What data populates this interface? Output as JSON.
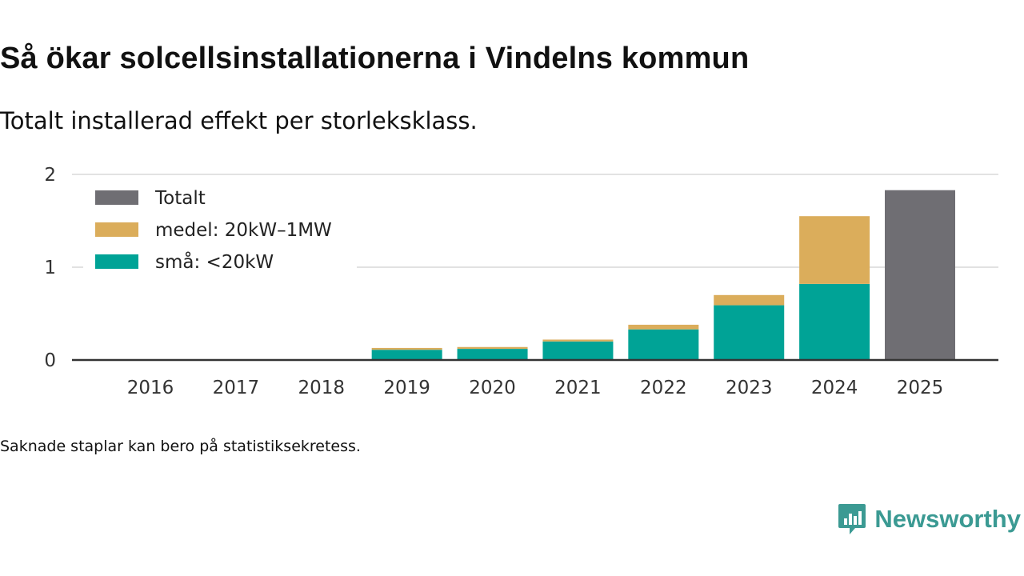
{
  "title": "Så ökar solcellsinstallationerna i Vindelns kommun",
  "subtitle": "Totalt installerad effekt per storleksklass.",
  "footnote": "Saknade staplar kan bero på statistiksekretess.",
  "brand": {
    "name": "Newsworthy",
    "icon": "newsworthy-logo-icon",
    "color": "#3b9a93"
  },
  "colors": {
    "sma": "#00a396",
    "medel": "#dbad5b",
    "totalt": "#6f6e73",
    "grid": "#d9d9d9",
    "axis": "#333333"
  },
  "chart_data": {
    "type": "bar",
    "stacked": true,
    "categories": [
      "2016",
      "2017",
      "2018",
      "2019",
      "2020",
      "2021",
      "2022",
      "2023",
      "2024",
      "2025"
    ],
    "series": [
      {
        "name": "små: <20kW",
        "key": "sma",
        "values": [
          0,
          0,
          0,
          0.11,
          0.12,
          0.2,
          0.33,
          0.59,
          0.82,
          0
        ]
      },
      {
        "name": "medel: 20kW–1MW",
        "key": "medel",
        "values": [
          0,
          0,
          0,
          0.02,
          0.02,
          0.02,
          0.05,
          0.11,
          0.73,
          0
        ]
      },
      {
        "name": "Totalt",
        "key": "totalt",
        "values": [
          0,
          0,
          0,
          0,
          0,
          0,
          0,
          0,
          0,
          1.83
        ]
      }
    ],
    "legend": [
      "Totalt",
      "medel: 20kW–1MW",
      "små: <20kW"
    ],
    "legend_position": "top-left",
    "yticks": [
      "0",
      "1",
      "2"
    ],
    "ylim": [
      0,
      2
    ],
    "xlabel": "",
    "ylabel": "",
    "grid": true
  }
}
